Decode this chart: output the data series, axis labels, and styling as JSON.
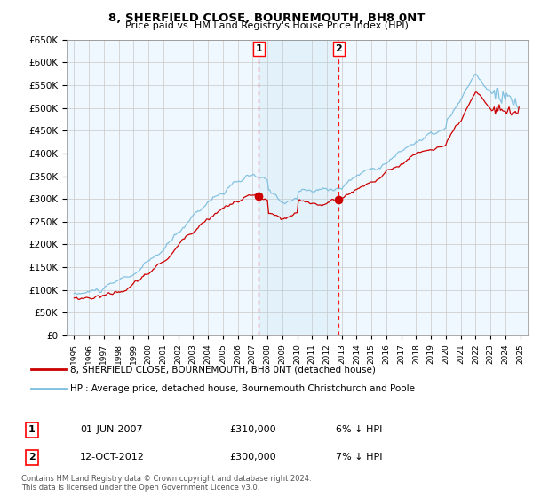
{
  "title": "8, SHERFIELD CLOSE, BOURNEMOUTH, BH8 0NT",
  "subtitle": "Price paid vs. HM Land Registry's House Price Index (HPI)",
  "legend_line1": "8, SHERFIELD CLOSE, BOURNEMOUTH, BH8 0NT (detached house)",
  "legend_line2": "HPI: Average price, detached house, Bournemouth Christchurch and Poole",
  "transaction1_date": "01-JUN-2007",
  "transaction1_price": "£310,000",
  "transaction1_hpi": "6% ↓ HPI",
  "transaction2_date": "12-OCT-2012",
  "transaction2_price": "£300,000",
  "transaction2_hpi": "7% ↓ HPI",
  "footnote": "Contains HM Land Registry data © Crown copyright and database right 2024.\nThis data is licensed under the Open Government Licence v3.0.",
  "hpi_color": "#7fbfdf",
  "price_color": "#cc0000",
  "marker_color": "#cc0000",
  "transaction1_year": 2007.42,
  "transaction2_year": 2012.79,
  "ylim": [
    0,
    650000
  ],
  "yticks": [
    0,
    50000,
    100000,
    150000,
    200000,
    250000,
    300000,
    350000,
    400000,
    450000,
    500000,
    550000,
    600000,
    650000
  ],
  "xmin": 1994.5,
  "xmax": 2025.5
}
